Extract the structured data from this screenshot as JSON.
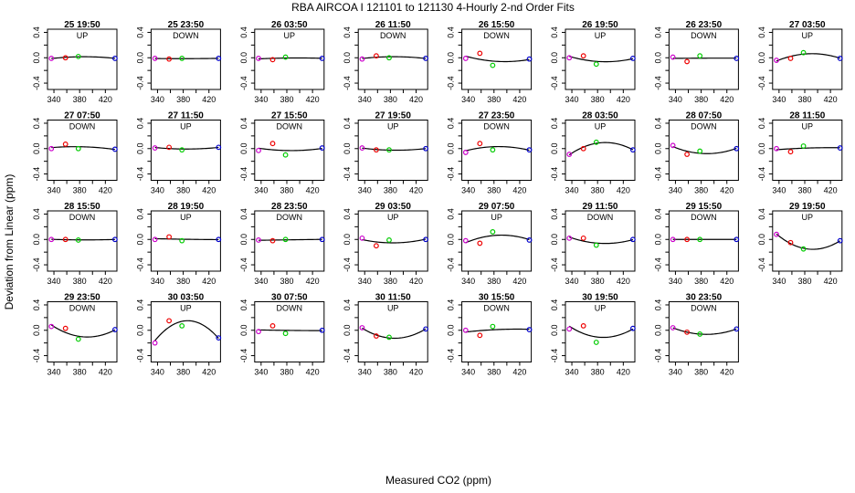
{
  "title": "RBA   AIRCOA I   121101 to 121130   4-Hourly 2-nd Order Fits",
  "xlabel": "Measured CO2 (ppm)",
  "ylabel": "Deviation from Linear (ppm)",
  "chart_data": {
    "type": "scatter",
    "title": "RBA   AIRCOA I   121101 to 121130   4-Hourly 2-nd Order Fits",
    "xlabel": "Measured CO2 (ppm)",
    "ylabel": "Deviation from Linear (ppm)",
    "xlim": [
      330,
      438
    ],
    "ylim": [
      -0.5,
      0.45
    ],
    "xticks": [
      340,
      360,
      380,
      400,
      420
    ],
    "xtick_labels": [
      "340",
      "",
      "380",
      "",
      "420"
    ],
    "yticks": [
      -0.4,
      -0.2,
      0,
      0.2,
      0.4
    ],
    "ytick_labels": [
      "-0.4",
      "",
      "0.0",
      "",
      "0.4"
    ],
    "standards_x": [
      336,
      358,
      378,
      435
    ],
    "standard_colors": [
      "#cc00cc",
      "#ee0000",
      "#00cc00",
      "#0000cc"
    ],
    "grid": false,
    "legend": "none",
    "panels": [
      {
        "label": "25 19:50",
        "mode": "UP",
        "y": [
          -0.01,
          0.0,
          0.02,
          -0.01
        ]
      },
      {
        "label": "25 23:50",
        "mode": "DOWN",
        "y": [
          -0.01,
          -0.02,
          -0.01,
          -0.01
        ]
      },
      {
        "label": "26 03:50",
        "mode": "UP",
        "y": [
          -0.01,
          -0.03,
          0.01,
          -0.01
        ]
      },
      {
        "label": "26 11:50",
        "mode": "DOWN",
        "y": [
          -0.02,
          0.03,
          0.0,
          -0.01
        ]
      },
      {
        "label": "26 15:50",
        "mode": "DOWN",
        "y": [
          -0.01,
          0.07,
          -0.12,
          -0.02
        ]
      },
      {
        "label": "26 19:50",
        "mode": "UP",
        "y": [
          0.0,
          0.03,
          -0.1,
          -0.01
        ]
      },
      {
        "label": "26 23:50",
        "mode": "DOWN",
        "y": [
          0.01,
          -0.06,
          0.03,
          -0.01
        ]
      },
      {
        "label": "27 03:50",
        "mode": "UP",
        "y": [
          -0.04,
          -0.01,
          0.08,
          -0.01
        ]
      },
      {
        "label": "27 07:50",
        "mode": "DOWN",
        "y": [
          0.0,
          0.07,
          0.0,
          -0.01
        ]
      },
      {
        "label": "27 11:50",
        "mode": "UP",
        "y": [
          0.01,
          0.02,
          -0.02,
          0.02
        ]
      },
      {
        "label": "27 15:50",
        "mode": "DOWN",
        "y": [
          -0.03,
          0.08,
          -0.1,
          0.01
        ]
      },
      {
        "label": "27 19:50",
        "mode": "UP",
        "y": [
          0.01,
          -0.02,
          -0.02,
          0.0
        ]
      },
      {
        "label": "27 23:50",
        "mode": "DOWN",
        "y": [
          -0.06,
          0.08,
          -0.02,
          -0.02
        ]
      },
      {
        "label": "28 03:50",
        "mode": "UP",
        "y": [
          -0.09,
          0.0,
          0.1,
          -0.02
        ]
      },
      {
        "label": "28 07:50",
        "mode": "DOWN",
        "y": [
          0.05,
          -0.09,
          -0.04,
          0.0
        ]
      },
      {
        "label": "28 11:50",
        "mode": "UP",
        "y": [
          0.0,
          -0.05,
          0.04,
          0.01
        ]
      },
      {
        "label": "28 15:50",
        "mode": "DOWN",
        "y": [
          0.0,
          0.0,
          -0.01,
          0.0
        ]
      },
      {
        "label": "28 19:50",
        "mode": "UP",
        "y": [
          0.0,
          0.04,
          -0.02,
          0.0
        ]
      },
      {
        "label": "28 23:50",
        "mode": "DOWN",
        "y": [
          -0.01,
          -0.02,
          0.0,
          0.0
        ]
      },
      {
        "label": "29 03:50",
        "mode": "UP",
        "y": [
          0.02,
          -0.1,
          -0.01,
          0.0
        ]
      },
      {
        "label": "29 07:50",
        "mode": "UP",
        "y": [
          -0.02,
          -0.06,
          0.12,
          -0.01
        ]
      },
      {
        "label": "29 11:50",
        "mode": "DOWN",
        "y": [
          0.02,
          0.02,
          -0.09,
          0.0
        ]
      },
      {
        "label": "29 15:50",
        "mode": "DOWN",
        "y": [
          0.0,
          0.0,
          0.0,
          0.0
        ]
      },
      {
        "label": "29 19:50",
        "mode": "UP",
        "y": [
          0.08,
          -0.05,
          -0.15,
          -0.02
        ]
      },
      {
        "label": "29 23:50",
        "mode": "DOWN",
        "y": [
          0.06,
          0.03,
          -0.14,
          0.01
        ]
      },
      {
        "label": "30 03:50",
        "mode": "UP",
        "y": [
          -0.2,
          0.15,
          0.07,
          -0.12
        ]
      },
      {
        "label": "30 07:50",
        "mode": "DOWN",
        "y": [
          -0.02,
          0.07,
          -0.05,
          0.0
        ]
      },
      {
        "label": "30 11:50",
        "mode": "UP",
        "y": [
          0.04,
          -0.09,
          -0.11,
          0.02
        ]
      },
      {
        "label": "30 15:50",
        "mode": "DOWN",
        "y": [
          0.0,
          -0.08,
          0.06,
          0.01
        ]
      },
      {
        "label": "30 19:50",
        "mode": "UP",
        "y": [
          0.02,
          0.07,
          -0.19,
          0.03
        ]
      },
      {
        "label": "30 23:50",
        "mode": "DOWN",
        "y": [
          0.04,
          -0.03,
          -0.06,
          0.02
        ]
      }
    ]
  }
}
